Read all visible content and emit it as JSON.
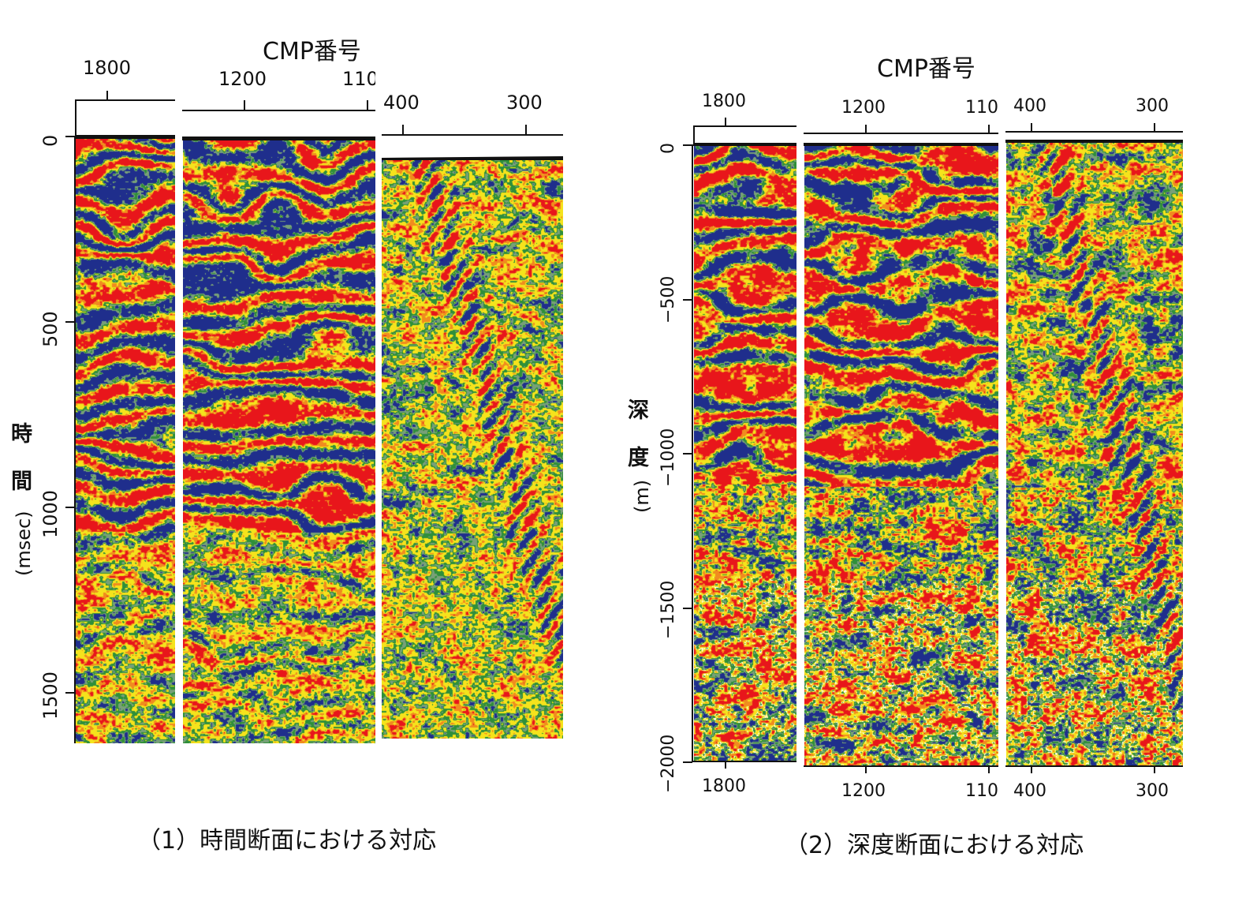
{
  "time_section": {
    "title": "CMP番号",
    "ylabel_chars": [
      "時",
      "間"
    ],
    "ylabel_unit": "(msec)",
    "y_ticks": [
      "0",
      "500",
      "1000",
      "1500"
    ],
    "top_ticks": {
      "a": "1800",
      "b": "1200",
      "c": "110",
      "d": "400",
      "e": "300"
    },
    "caption": "（1）時間断面における対応"
  },
  "depth_section": {
    "title": "CMP番号",
    "ylabel_chars": [
      "深",
      "度"
    ],
    "ylabel_unit": "(m)",
    "y_ticks": [
      "0",
      "−500",
      "−1000",
      "−1500",
      "−2000"
    ],
    "top_ticks": {
      "a": "1800",
      "b": "1200",
      "c": "110",
      "d": "400",
      "e": "300"
    },
    "bottom_ticks": {
      "a": "1800",
      "b": "1200",
      "c": "110",
      "d": "400",
      "e": "300"
    },
    "caption": "（2）深度断面における対応"
  },
  "colors": {
    "red": "#e8161b",
    "blue": "#1f2e8c",
    "yellow": "#f5e31c",
    "green": "#2f8f3a",
    "white": "#ffffff"
  }
}
